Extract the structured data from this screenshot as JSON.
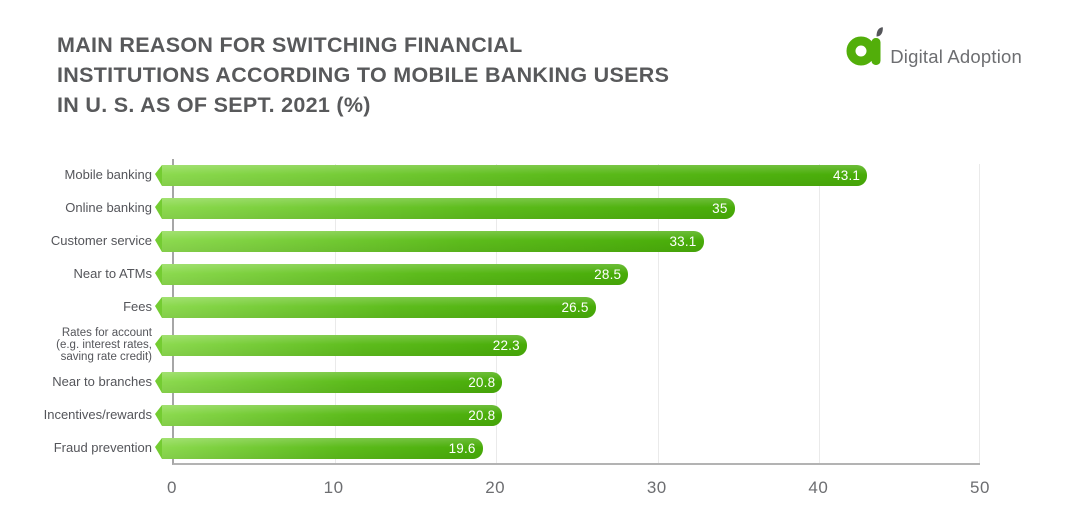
{
  "header": {
    "title": "MAIN REASON FOR SWITCHING FINANCIAL\nINSTITUTIONS ACCORDING TO MOBILE BANKING USERS\nIN U. S. AS OF SEPT. 2021 (%)",
    "logo": {
      "mark_icon": "digital-adoption-logo-mark",
      "text": "Digital Adoption"
    }
  },
  "colors": {
    "bar_gradient_start": "#8CDA4F",
    "bar_gradient_end": "#48AC08",
    "bar_tail": "#74CC32",
    "logo_green": "#52AE0A",
    "title_text": "#58595B",
    "axis_line": "#A6A6A6",
    "baseline": "#B3B3B3",
    "grid_line": "#EAEAEA",
    "tick_text": "#6D6E71",
    "category_text": "#54555A",
    "value_text": "#FFFFFF"
  },
  "chart_data": {
    "type": "bar",
    "orientation": "horizontal",
    "title": "MAIN REASON FOR SWITCHING FINANCIAL INSTITUTIONS ACCORDING TO MOBILE BANKING USERS IN U. S. AS OF SEPT. 2021 (%)",
    "categories": [
      "Mobile banking",
      "Online banking",
      "Customer service",
      "Near to ATMs",
      "Fees",
      "Rates for account\n(e.g. interest rates,\nsaving rate credit)",
      "Near to branches",
      "Incentives/rewards",
      "Fraud prevention"
    ],
    "values": [
      43.1,
      35,
      33.1,
      28.5,
      26.5,
      22.3,
      20.8,
      20.8,
      19.6
    ],
    "value_labels": [
      "43.1",
      "35",
      "33.1",
      "28.5",
      "26.5",
      "22.3",
      "20.8",
      "20.8",
      "19.6"
    ],
    "xlabel": "",
    "ylabel": "",
    "xlim": [
      0,
      50
    ],
    "xticks": [
      0,
      10,
      20,
      30,
      40,
      50
    ],
    "grid": "vertical-gridlines",
    "legend": "none",
    "bar_style": "green gradient pill, white value label inside right end"
  }
}
